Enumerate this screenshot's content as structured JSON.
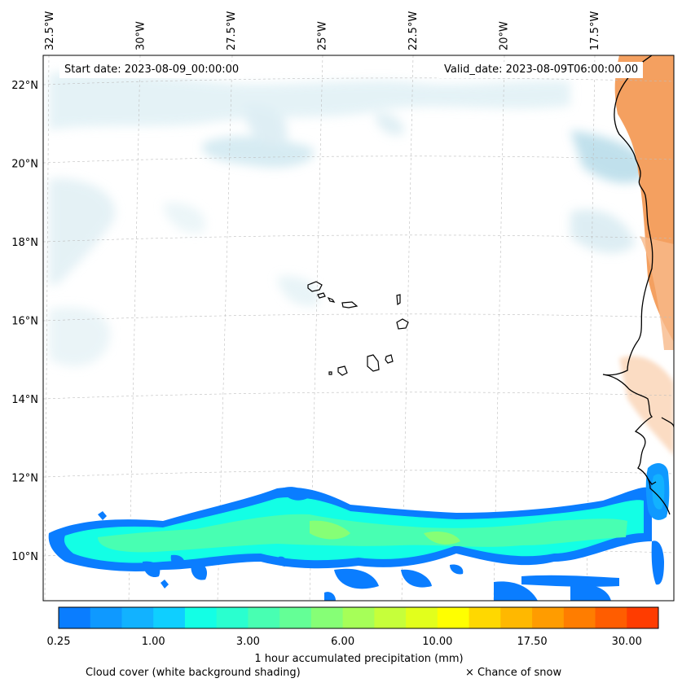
{
  "header": {
    "start_date": "Start date: 2023-08-09_00:00:00",
    "valid_date": "Valid_date: 2023-08-09T06:00:00.00"
  },
  "longitudes": [
    {
      "label": "32.5°W",
      "value": -32.5
    },
    {
      "label": "30°W",
      "value": -30
    },
    {
      "label": "27.5°W",
      "value": -27.5
    },
    {
      "label": "25°W",
      "value": -25
    },
    {
      "label": "22.5°W",
      "value": -22.5
    },
    {
      "label": "20°W",
      "value": -20
    },
    {
      "label": "17.5°W",
      "value": -17.5
    }
  ],
  "latitudes": [
    {
      "label": "22°N",
      "value": 22
    },
    {
      "label": "20°N",
      "value": 20
    },
    {
      "label": "18°N",
      "value": 18
    },
    {
      "label": "16°N",
      "value": 16
    },
    {
      "label": "14°N",
      "value": 14
    },
    {
      "label": "12°N",
      "value": 12
    },
    {
      "label": "10°N",
      "value": 10
    }
  ],
  "colorbar": {
    "label": "1 hour accumulated precipitation (mm)",
    "colors": [
      "#0a7dff",
      "#0f99ff",
      "#12b2ff",
      "#0fcfff",
      "#13ffe5",
      "#2affcf",
      "#48ffb2",
      "#64ff96",
      "#86ff76",
      "#a6ff58",
      "#c6ff3a",
      "#e2ff1c",
      "#ffff00",
      "#ffd800",
      "#ffb800",
      "#ff9c00",
      "#ff7d00",
      "#ff5d00",
      "#ff3c00"
    ],
    "ticks": [
      "0.25",
      "1.00",
      "3.00",
      "6.00",
      "10.00",
      "17.50",
      "30.00"
    ]
  },
  "legend": {
    "cloud_cover": "Cloud cover (white background shading)",
    "snow": "× Chance of snow"
  },
  "colors": {
    "cloud": "#bfe0ea",
    "land_heat": "#f4a060",
    "coastline": "#000000",
    "gridline": "#bdbdbd"
  }
}
